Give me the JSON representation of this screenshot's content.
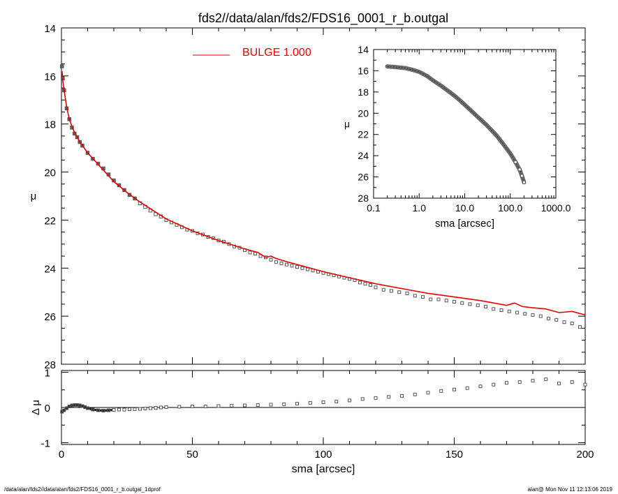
{
  "chart_data": [
    {
      "type": "scatter",
      "panel": "main",
      "title": "fds2//data/alan/fds2/FDS16_0001_r_b.outgal",
      "ylabel": "μ",
      "xlim": [
        0,
        200
      ],
      "ylim": [
        28,
        14
      ],
      "y_inverted": true,
      "xticks": [],
      "yticks": [
        "14",
        "16",
        "18",
        "20",
        "22",
        "24",
        "26",
        "28"
      ],
      "legend": {
        "label": "BULGE  1.000",
        "color": "#e60000",
        "placement": "top-center"
      },
      "series": [
        {
          "name": "BULGE  1.000",
          "kind": "line",
          "color": "#e60000",
          "x": [
            0.2,
            0.5,
            1,
            2,
            3,
            4,
            5,
            7,
            10,
            15,
            20,
            25,
            30,
            35,
            40,
            50,
            60,
            70,
            75,
            78,
            80,
            82,
            85,
            90,
            100,
            110,
            120,
            130,
            140,
            150,
            160,
            165,
            170,
            173,
            176,
            180,
            185,
            190,
            195,
            200
          ],
          "y": [
            15.8,
            16.2,
            16.6,
            17.3,
            17.8,
            18.1,
            18.35,
            18.75,
            19.2,
            19.8,
            20.4,
            20.85,
            21.25,
            21.6,
            21.95,
            22.45,
            22.85,
            23.2,
            23.35,
            23.55,
            23.5,
            23.6,
            23.7,
            23.85,
            24.15,
            24.4,
            24.65,
            24.85,
            25.05,
            25.2,
            25.35,
            25.45,
            25.55,
            25.45,
            25.6,
            25.65,
            25.7,
            25.85,
            25.8,
            25.95
          ]
        },
        {
          "name": "",
          "kind": "markers",
          "color": "#555555",
          "x": [
            0.2,
            0.5,
            1,
            2,
            3,
            4,
            5,
            6,
            7,
            8,
            10,
            12,
            14,
            16,
            18,
            20,
            22,
            24,
            26,
            28,
            30,
            32,
            34,
            36,
            38,
            40,
            42,
            44,
            46,
            48,
            50,
            52,
            54,
            56,
            58,
            60,
            62,
            64,
            66,
            68,
            70,
            72,
            74,
            76,
            78,
            80,
            82,
            84,
            86,
            88,
            90,
            92,
            94,
            96,
            98,
            100,
            102,
            104,
            106,
            108,
            110,
            112,
            114,
            116,
            118,
            120,
            123,
            126,
            129,
            132,
            135,
            138,
            141,
            144,
            147,
            150,
            153,
            156,
            159,
            162,
            165,
            168,
            171,
            174,
            177,
            180,
            183,
            186,
            189,
            192,
            195,
            198
          ],
          "y": [
            15.6,
            16.1,
            16.6,
            17.35,
            17.8,
            18.15,
            18.4,
            18.55,
            18.75,
            18.9,
            19.2,
            19.45,
            19.65,
            19.85,
            20.1,
            20.35,
            20.55,
            20.75,
            20.95,
            21.1,
            21.3,
            21.45,
            21.6,
            21.75,
            21.85,
            22.0,
            22.1,
            22.2,
            22.3,
            22.4,
            22.45,
            22.55,
            22.6,
            22.7,
            22.75,
            22.85,
            22.9,
            23.0,
            23.1,
            23.15,
            23.25,
            23.35,
            23.4,
            23.5,
            23.55,
            23.65,
            23.75,
            23.8,
            23.85,
            23.9,
            23.95,
            24.0,
            24.05,
            24.1,
            24.15,
            24.2,
            24.25,
            24.3,
            24.35,
            24.4,
            24.45,
            24.5,
            24.6,
            24.65,
            24.7,
            24.8,
            24.9,
            24.95,
            25.0,
            25.05,
            25.15,
            25.2,
            25.3,
            25.3,
            25.35,
            25.4,
            25.45,
            25.5,
            25.55,
            25.6,
            25.7,
            25.75,
            25.8,
            25.85,
            25.9,
            25.95,
            26.0,
            26.1,
            26.15,
            26.25,
            26.3,
            26.45
          ]
        }
      ]
    },
    {
      "type": "scatter",
      "panel": "inset",
      "xlabel": "sma [arcsec]",
      "ylabel": "μ",
      "x_scale": "log",
      "xlim": [
        0.1,
        1000
      ],
      "ylim": [
        28,
        14
      ],
      "y_inverted": true,
      "xticks": [
        "0.1",
        "1.0",
        "10.0",
        "100.0",
        "1000.0"
      ],
      "yticks": [
        "14",
        "16",
        "18",
        "20",
        "22",
        "24",
        "26",
        "28"
      ],
      "series": [
        {
          "name": "",
          "kind": "markers-dense",
          "color": "#555555",
          "x": [
            0.2,
            0.3,
            0.5,
            0.7,
            1.0,
            1.5,
            2,
            3,
            5,
            7,
            10,
            15,
            20,
            30,
            50,
            70,
            100,
            130,
            160,
            180,
            200
          ],
          "y": [
            15.6,
            15.65,
            15.75,
            15.9,
            16.1,
            16.5,
            16.9,
            17.4,
            18.1,
            18.6,
            19.2,
            19.9,
            20.4,
            21.1,
            22.1,
            22.9,
            23.8,
            24.6,
            25.3,
            25.9,
            26.5
          ]
        }
      ]
    },
    {
      "type": "scatter",
      "panel": "residual",
      "xlabel": "sma [arcsec]",
      "ylabel": "Δ μ",
      "xlim": [
        0,
        200
      ],
      "ylim": [
        -1.05,
        1.05
      ],
      "xticks": [
        "0",
        "50",
        "100",
        "150",
        "200"
      ],
      "yticks": [
        "-1",
        "0",
        "1"
      ],
      "series": [
        {
          "name": "",
          "kind": "markers",
          "color": "#555555",
          "x": [
            0.2,
            1,
            2,
            3,
            4,
            5,
            6,
            7,
            8,
            9,
            10,
            12,
            14,
            16,
            18,
            20,
            22,
            24,
            26,
            28,
            30,
            32,
            34,
            36,
            38,
            40,
            45,
            50,
            55,
            60,
            65,
            70,
            75,
            80,
            85,
            90,
            95,
            100,
            105,
            110,
            115,
            120,
            125,
            130,
            135,
            140,
            145,
            150,
            155,
            160,
            165,
            170,
            175,
            180,
            185,
            190,
            195,
            200
          ],
          "y": [
            -0.12,
            -0.08,
            -0.02,
            0.03,
            0.06,
            0.07,
            0.07,
            0.06,
            0.04,
            0.01,
            -0.02,
            -0.06,
            -0.08,
            -0.09,
            -0.08,
            -0.07,
            -0.06,
            -0.06,
            -0.05,
            -0.05,
            -0.04,
            -0.03,
            -0.02,
            -0.01,
            0.0,
            0.01,
            0.02,
            0.03,
            0.03,
            0.04,
            0.05,
            0.06,
            0.07,
            0.08,
            0.09,
            0.11,
            0.13,
            0.15,
            0.17,
            0.2,
            0.24,
            0.27,
            0.3,
            0.33,
            0.37,
            0.42,
            0.47,
            0.51,
            0.55,
            0.6,
            0.65,
            0.7,
            0.72,
            0.76,
            0.8,
            0.68,
            0.72,
            0.65
          ]
        }
      ]
    }
  ],
  "footer": {
    "left": "/data/alan/fds2//data/alan/fds2/FDS16_0001_r_b.outgal_1dprof",
    "right": "alan@  Mon Nov 11 12:13:06 2019"
  }
}
